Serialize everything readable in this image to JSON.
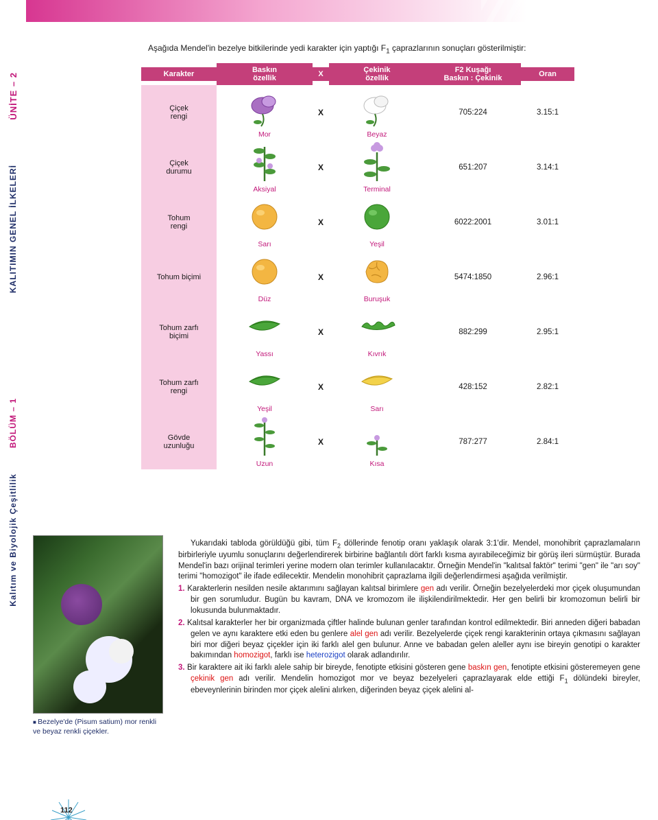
{
  "rail": {
    "unit": "ÜNİTE – 2",
    "chapter": "KALITIMIN GENEL İLKELERİ",
    "section": "BÖLÜM – 1",
    "subsection": "Kalıtım ve Biyolojik Çeşitlilik"
  },
  "intro": {
    "pre": "Aşağıda Mendel'in bezelye bitkilerinde yedi karakter için yaptığı F",
    "sub": "1",
    "post": " çaprazlarının sonuçları gösterilmiştir:"
  },
  "table": {
    "headers": {
      "karakter": "Karakter",
      "baskin": "Baskın\nözellik",
      "x": "X",
      "cekinik": "Çekinik\nözellik",
      "f2": "F2 Kuşağı\nBaskın : Çekinik",
      "oran": "Oran"
    },
    "rows": [
      {
        "name": "Çiçek\nrengi",
        "dom_label": "Mor",
        "rec_label": "Beyaz",
        "ratio": "705:224",
        "oran": "3.15:1",
        "dom_svg": "flower_purple",
        "rec_svg": "flower_white"
      },
      {
        "name": "Çiçek\ndurumu",
        "dom_label": "Aksiyal",
        "rec_label": "Terminal",
        "ratio": "651:207",
        "oran": "3.14:1",
        "dom_svg": "pos_axial",
        "rec_svg": "pos_terminal"
      },
      {
        "name": "Tohum\nrengi",
        "dom_label": "Sarı",
        "rec_label": "Yeşil",
        "ratio": "6022:2001",
        "oran": "3.01:1",
        "dom_svg": "seed_yellow",
        "rec_svg": "seed_green"
      },
      {
        "name": "Tohum biçimi",
        "dom_label": "Düz",
        "rec_label": "Buruşuk",
        "ratio": "5474:1850",
        "oran": "2.96:1",
        "dom_svg": "seed_smooth",
        "rec_svg": "seed_wrinkled"
      },
      {
        "name": "Tohum zarfı\nbiçimi",
        "dom_label": "Yassı",
        "rec_label": "Kıvrık",
        "ratio": "882:299",
        "oran": "2.95:1",
        "dom_svg": "pod_inflated",
        "rec_svg": "pod_constricted"
      },
      {
        "name": "Tohum zarfı\nrengi",
        "dom_label": "Yeşil",
        "rec_label": "Sarı",
        "ratio": "428:152",
        "oran": "2.82:1",
        "dom_svg": "pod_green",
        "rec_svg": "pod_yellow"
      },
      {
        "name": "Gövde\nuzunluğu",
        "dom_label": "Uzun",
        "rec_label": "Kısa",
        "ratio": "787:277",
        "oran": "2.84:1",
        "dom_svg": "stem_tall",
        "rec_svg": "stem_short"
      }
    ],
    "colors": {
      "header_bg": "#c43f7a",
      "header_fg": "#ffffff",
      "label_bg": "#f7cde2",
      "caption_fg": "#c2187a"
    }
  },
  "figure_caption": "Bezelye'de (Pisum satium) mor renkli ve beyaz renkli çiçekler.",
  "body": {
    "p1a": "Yukarıdaki tabloda görüldüğü gibi, tüm F",
    "p1sub": "2",
    "p1b": " döllerinde fenotip oranı yaklaşık olarak 3:1'dir. Mendel, monohibrit çaprazlamaların birbirleriyle uyumlu sonuçlarını değerlendirerek birbirine bağlantılı dört farklı kısma ayırabileceğimiz bir görüş ileri sürmüştür. Burada Mendel'in bazı orijinal terimleri yerine modern olan terimler kullanılacaktır. Örneğin Mendel'in \"kalıtsal faktör\" terimi \"gen\" ile \"arı soy\" terimi \"homozigot\" ile ifade edilecektir. Mendelin monohibrit çaprazlama ilgili değerlendirmesi aşağıda verilmiştir.",
    "li1_num": "1.",
    "li1": "Karakterlerin nesilden nesile aktarımını sağlayan kalıtsal birimlere ",
    "li1_gen": "gen",
    "li1b": " adı verilir. Örneğin bezelyelerdeki mor çiçek oluşumundan bir gen sorumludur. Bugün bu kavram, DNA ve kromozom ile ilişkilendirilmektedir. Her gen belirli bir kromozomun belirli bir lokusunda bulunmaktadır.",
    "li2_num": "2.",
    "li2": "Kalıtsal karakterler her bir organizmada çiftler halinde bulunan genler tarafından kontrol edilmektedir. Biri anneden diğeri babadan gelen ve aynı karaktere etki eden bu genlere ",
    "li2_alel": "alel gen",
    "li2b": " adı verilir. Bezelyelerde çiçek rengi karakterinin ortaya çıkmasını sağlayan biri mor diğeri beyaz çiçekler için iki farklı alel gen bulunur. Anne ve babadan gelen aleller aynı ise bireyin genotipi o karakter bakımından ",
    "li2_homo": "homozigot",
    "li2c": ", farklı ise ",
    "li2_het": "heterozigot",
    "li2d": " olarak adlandırılır.",
    "li3_num": "3.",
    "li3": "Bir karaktere ait iki farklı alele sahip bir bireyde, fenotipte etkisini gösteren gene ",
    "li3_bas": "baskın gen",
    "li3b": ", fenotipte etkisini gösteremeyen gene ",
    "li3_cek": "çekinik gen",
    "li3c": " adı verilir. Mendelin homozigot mor ve beyaz bezelyeleri çaprazlayarak elde ettiği F",
    "li3_sub": "1",
    "li3d": " dölündeki bireyler, ebeveynlerinin birinden mor çiçek alelini alırken, diğerinden beyaz çiçek alelini al-"
  },
  "page_number": "112"
}
